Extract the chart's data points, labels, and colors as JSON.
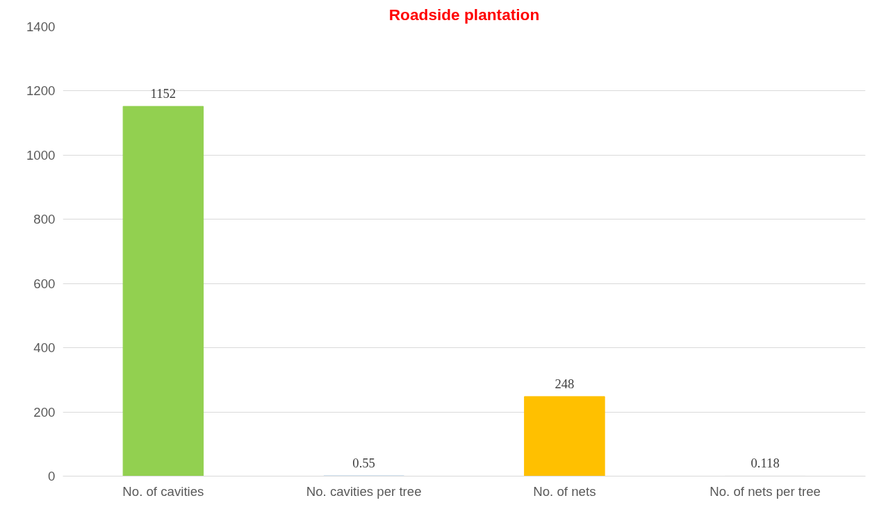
{
  "chart_data": {
    "type": "bar",
    "title": "Roadside plantation",
    "categories": [
      "No. of cavities",
      "No. cavities per tree",
      "No. of nets",
      "No. of nets per tree"
    ],
    "values": [
      1152,
      0.55,
      248,
      0.118
    ],
    "colors": [
      "#92d050",
      "#5b9bd5",
      "#ffc000",
      "#a5a5a5"
    ],
    "ylim": [
      0,
      1400
    ],
    "yticks": [
      0,
      200,
      400,
      600,
      800,
      1000,
      1200,
      1400
    ],
    "grid": "y",
    "data_labels": true
  }
}
